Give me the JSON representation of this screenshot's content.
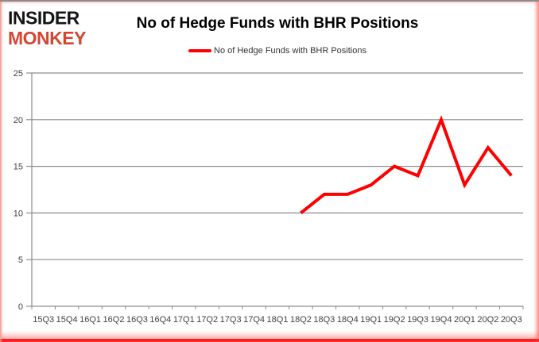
{
  "logo": {
    "line1": "INSIDER",
    "line2": "MONKEY"
  },
  "colors": {
    "series_red": "#ff0000",
    "logo_red": "#d24731",
    "grid_gray": "#8c8c8c"
  },
  "chart_data": {
    "type": "line",
    "title": "No of Hedge Funds with BHR Positions",
    "legend": "No of Hedge Funds with BHR Positions",
    "legend_position": "top",
    "grid": true,
    "xlabel": "",
    "ylabel": "",
    "ylim": [
      0,
      25
    ],
    "yticks": [
      0,
      5,
      10,
      15,
      20,
      25
    ],
    "categories": [
      "15Q3",
      "15Q4",
      "16Q1",
      "16Q2",
      "16Q3",
      "16Q4",
      "17Q1",
      "17Q2",
      "17Q3",
      "17Q4",
      "18Q1",
      "18Q2",
      "18Q3",
      "18Q4",
      "19Q1",
      "19Q2",
      "19Q3",
      "19Q4",
      "20Q1",
      "20Q2",
      "20Q3"
    ],
    "series": [
      {
        "name": "No of Hedge Funds with BHR Positions",
        "color": "#ff0000",
        "values": [
          null,
          null,
          null,
          null,
          null,
          null,
          null,
          null,
          null,
          null,
          null,
          10,
          12,
          12,
          13,
          15,
          14,
          20,
          13,
          17,
          14
        ]
      }
    ]
  }
}
